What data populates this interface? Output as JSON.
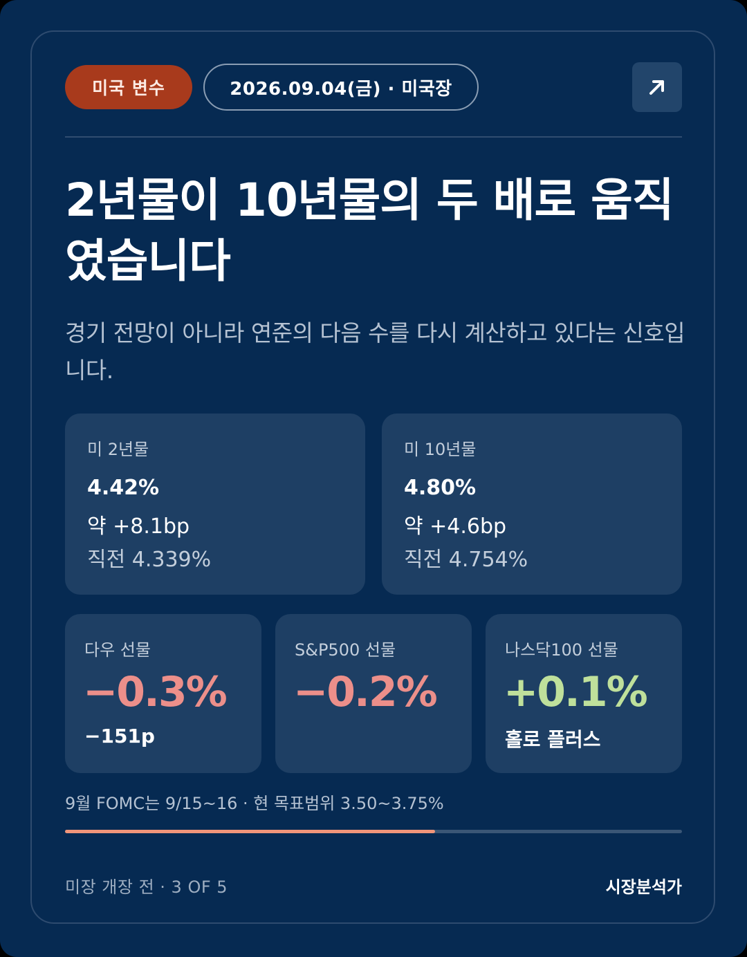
{
  "header": {
    "category_tag": "미국 변수",
    "date_session": "2026.09.04(금) · 미국장",
    "open_icon": "arrow-up-right-icon"
  },
  "headline": "2년물이 10년물의 두 배로 움직였습니다",
  "subtitle": "경기 전망이 아니라 연준의 다음 수를 다시 계산하고 있다는 신호입니다.",
  "yields": [
    {
      "label": "미 2년물",
      "value": "4.42%",
      "change": "약 +8.1bp",
      "previous": "직전 4.339%"
    },
    {
      "label": "미 10년물",
      "value": "4.80%",
      "change": "약 +4.6bp",
      "previous": "직전 4.754%"
    }
  ],
  "futures": [
    {
      "label": "다우 선물",
      "value": "−0.3%",
      "note": "−151p",
      "direction": "down"
    },
    {
      "label": "S&P500 선물",
      "value": "−0.2%",
      "note": "",
      "direction": "down"
    },
    {
      "label": "나스닥100 선물",
      "value": "+0.1%",
      "note": "홀로 플러스",
      "direction": "up"
    }
  ],
  "fomc_note": "9월 FOMC는 9/15~16 · 현 목표범위 3.50~3.75%",
  "progress": {
    "fraction": 0.6
  },
  "footer": {
    "status": "미장 개장 전 · 3 OF 5",
    "author": "시장분석가"
  },
  "colors": {
    "background": "#062a52",
    "tile": "#1e3f64",
    "tag": "#a83a1c",
    "negative": "#ec8f8a",
    "positive": "#bfe09b",
    "progress": "#f0957a"
  }
}
